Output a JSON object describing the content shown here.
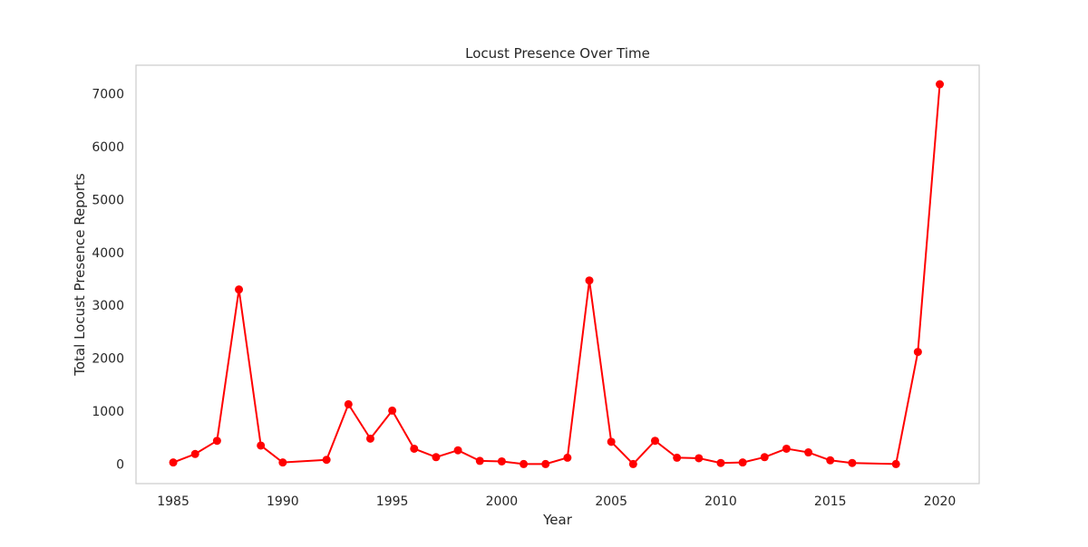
{
  "chart_data": {
    "type": "line",
    "title": "Locust Presence Over Time",
    "xlabel": "Year",
    "ylabel": "Total Locust Presence Reports",
    "xlim": [
      1983.3,
      2021.8
    ],
    "ylim": [
      -370,
      7540
    ],
    "xticks": [
      1985,
      1990,
      1995,
      2000,
      2005,
      2010,
      2015,
      2020
    ],
    "yticks": [
      0,
      1000,
      2000,
      3000,
      4000,
      5000,
      6000,
      7000
    ],
    "grid": false,
    "legend": "none",
    "series": [
      {
        "color": "#ff0000",
        "marker": "circle",
        "x": [
          1985,
          1986,
          1987,
          1988,
          1989,
          1990,
          1992,
          1993,
          1994,
          1995,
          1996,
          1997,
          1998,
          1999,
          2000,
          2001,
          2002,
          2003,
          2004,
          2005,
          2006,
          2007,
          2008,
          2009,
          2010,
          2011,
          2012,
          2013,
          2014,
          2015,
          2016,
          2018,
          2019,
          2020
        ],
        "y": [
          30,
          190,
          440,
          3300,
          350,
          30,
          80,
          1130,
          480,
          1010,
          290,
          130,
          260,
          60,
          50,
          0,
          0,
          120,
          3470,
          420,
          0,
          440,
          120,
          110,
          20,
          30,
          130,
          290,
          220,
          70,
          20,
          0,
          2120,
          7180
        ]
      }
    ]
  }
}
